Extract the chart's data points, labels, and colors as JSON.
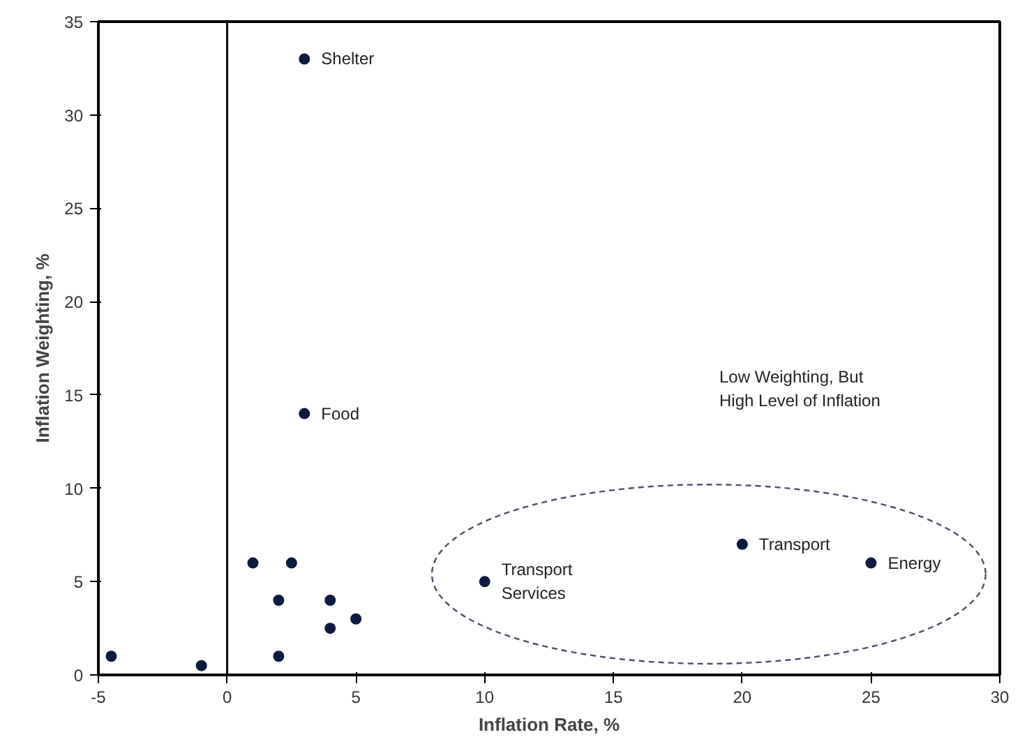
{
  "chart_data": {
    "type": "scatter",
    "xlabel": "Inflation Rate, %",
    "ylabel": "Inflation Weighting, %",
    "x": [
      -4.5,
      -1,
      1,
      2.5,
      2,
      2,
      4,
      4,
      5,
      3,
      3,
      10,
      20,
      25
    ],
    "values": [
      1,
      0.5,
      6,
      6,
      4,
      1,
      4,
      2.5,
      3,
      33,
      14,
      5,
      7,
      6
    ],
    "color": "#0d1b3e",
    "marker": "circle",
    "xlim": [
      -5,
      30
    ],
    "ylim": [
      0,
      35
    ],
    "xticks": [
      -5,
      0,
      5,
      10,
      15,
      20,
      25,
      30
    ],
    "yticks": [
      0,
      5,
      10,
      15,
      20,
      25,
      30,
      35
    ],
    "grid": false,
    "ref_lines": [
      {
        "axis": "x",
        "value": 0,
        "color": "#000000",
        "line_style": "solid"
      }
    ],
    "annotations": [
      {
        "text": "Shelter",
        "x": 3,
        "y": 33
      },
      {
        "text": "Food",
        "x": 3,
        "y": 14
      },
      {
        "text": "Transport\nServices",
        "x": 10,
        "y": 5
      },
      {
        "text": "Transport",
        "x": 20,
        "y": 7
      },
      {
        "text": "Energy",
        "x": 25,
        "y": 6
      },
      "Low Weighting, But\nHigh Level of Inflation"
    ]
  }
}
